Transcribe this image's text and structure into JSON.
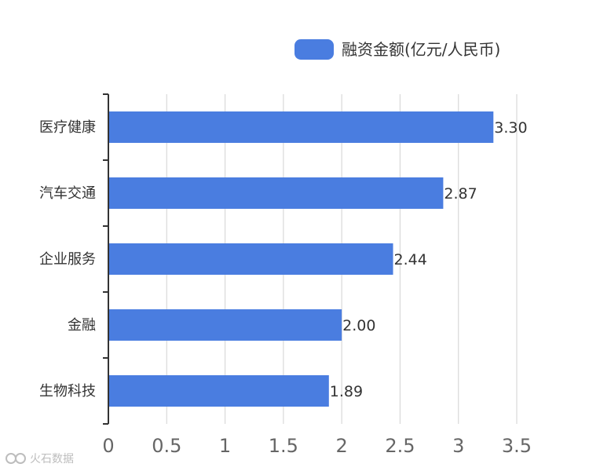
{
  "chart_data": {
    "type": "bar",
    "orientation": "horizontal",
    "categories": [
      "医疗健康",
      "汽车交通",
      "企业服务",
      "金融",
      "生物科技"
    ],
    "series": [
      {
        "name": "融资金额(亿元/人民币)",
        "values": [
          3.3,
          2.87,
          2.44,
          2.0,
          1.89
        ],
        "value_labels": [
          "3.30",
          "2.87",
          "2.44",
          "2.00",
          "1.89"
        ],
        "color": "#4a7de0"
      }
    ],
    "x_ticks": [
      "0",
      "0.5",
      "1",
      "1.5",
      "2",
      "2.5",
      "3",
      "3.5"
    ],
    "xlim": [
      0,
      3.5
    ],
    "grid": true,
    "legend_position": "top-right"
  },
  "watermark": {
    "text": "火石数据"
  }
}
